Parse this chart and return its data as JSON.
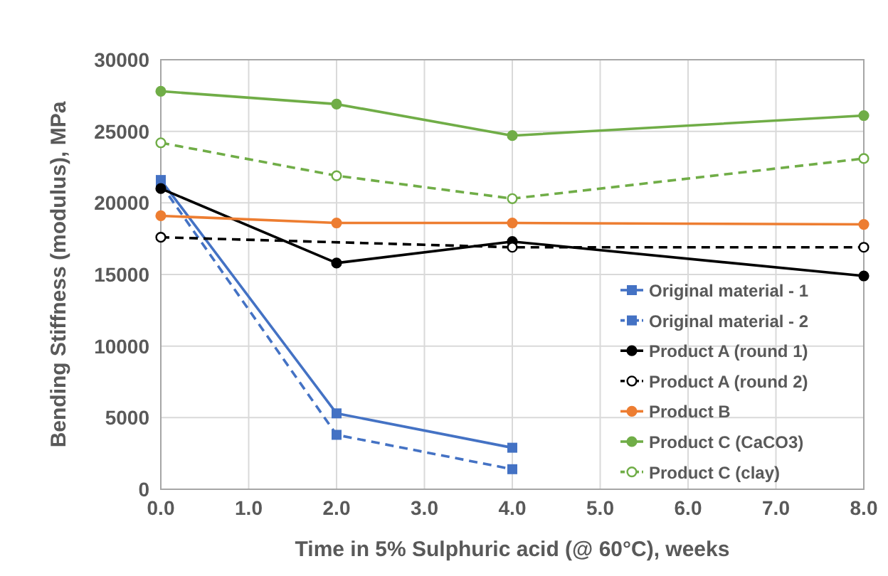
{
  "chart_data": {
    "type": "line",
    "xlabel": "Time in 5% Sulphuric acid (@ 60°C), weeks",
    "ylabel": "Bending Stiffness (modulus), MPa",
    "x": [
      0,
      2,
      4,
      8
    ],
    "xlim": [
      0,
      8
    ],
    "xticks": [
      {
        "value": 0,
        "label": "0.0"
      },
      {
        "value": 1,
        "label": "1.0"
      },
      {
        "value": 2,
        "label": "2.0"
      },
      {
        "value": 3,
        "label": "3.0"
      },
      {
        "value": 4,
        "label": "4.0"
      },
      {
        "value": 5,
        "label": "5.0"
      },
      {
        "value": 6,
        "label": "6.0"
      },
      {
        "value": 7,
        "label": "7.0"
      },
      {
        "value": 8,
        "label": "8.0"
      }
    ],
    "ylim": [
      0,
      30000
    ],
    "yticks": [
      0,
      5000,
      10000,
      15000,
      20000,
      25000,
      30000
    ],
    "grid": true,
    "legend": "bottom right",
    "series": [
      {
        "name": "Original material - 1",
        "color": "#4472c4",
        "x": [
          0,
          2,
          4
        ],
        "values": [
          21600,
          5300,
          2900
        ],
        "marker": "square",
        "line_style": "solid"
      },
      {
        "name": "Original material - 2",
        "color": "#4472c4",
        "x": [
          0,
          2,
          4
        ],
        "values": [
          21300,
          3800,
          1400
        ],
        "marker": "square",
        "line_style": "dashed"
      },
      {
        "name": "Product A (round 1)",
        "color": "#000000",
        "values": [
          21000,
          15800,
          17300,
          14900
        ],
        "marker": "circle",
        "line_style": "solid"
      },
      {
        "name": "Product A (round 2)",
        "color": "#000000",
        "x": [
          0,
          4,
          8
        ],
        "values": [
          17600,
          16900,
          16900
        ],
        "marker": "circle",
        "line_style": "dashed"
      },
      {
        "name": "Product B",
        "color": "#ed7d31",
        "values": [
          19100,
          18600,
          18600,
          18500
        ],
        "marker": "circle",
        "line_style": "solid"
      },
      {
        "name": "Product C (CaCO3)",
        "color": "#70ad47",
        "values": [
          27800,
          26900,
          24700,
          26100
        ],
        "marker": "circle",
        "line_style": "solid"
      },
      {
        "name": "Product C (clay)",
        "color": "#70ad47",
        "values": [
          24200,
          21900,
          20300,
          23100
        ],
        "marker": "circle",
        "line_style": "dashed"
      }
    ]
  }
}
